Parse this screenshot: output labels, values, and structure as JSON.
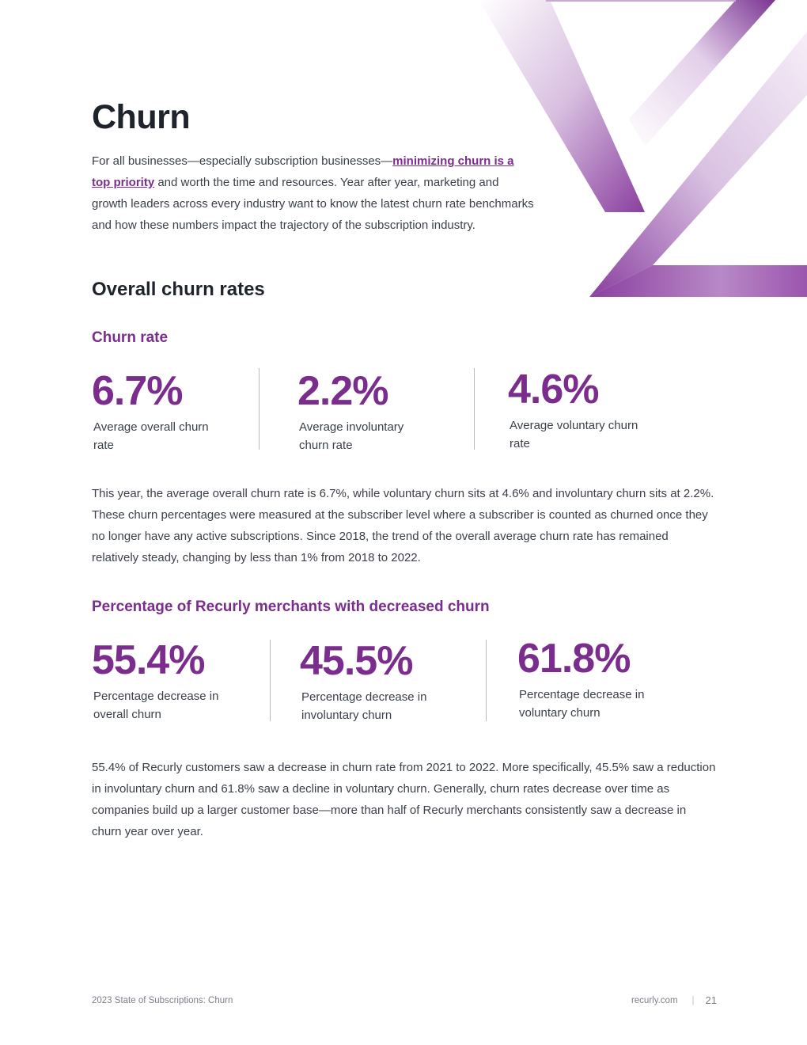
{
  "colors": {
    "accent": "#7b2d8e",
    "heading": "#1f232b",
    "body": "#3a3f48",
    "footer": "#7a7f88"
  },
  "page": {
    "title": "Churn",
    "intro": {
      "before_link": "For all businesses—especially subscription businesses—",
      "link_text": "minimizing churn is a top priority",
      "after_link": " and worth the time and resources. Year after year, marketing and growth leaders across every industry want to know the latest churn rate benchmarks and how these numbers impact the trajectory of the subscription industry."
    },
    "section_title": "Overall churn rates"
  },
  "churn_rate": {
    "heading": "Churn rate",
    "stats": [
      {
        "value": "6.7%",
        "label": "Average overall churn rate"
      },
      {
        "value": "2.2%",
        "label": "Average involuntary churn rate"
      },
      {
        "value": "4.6%",
        "label": "Average voluntary churn rate"
      }
    ],
    "paragraph": "This year, the average overall churn rate is 6.7%, while voluntary churn sits at 4.6% and involuntary churn sits at 2.2%. These churn percentages were measured at the subscriber level where a subscriber is counted as churned once they no longer have any active subscriptions. Since 2018, the trend of the overall average churn rate has remained relatively steady, changing by less than 1% from 2018 to 2022."
  },
  "decreased_churn": {
    "heading": "Percentage of Recurly merchants with decreased churn",
    "stats": [
      {
        "value": "55.4%",
        "label": "Percentage decrease in overall churn"
      },
      {
        "value": "45.5%",
        "label": "Percentage decrease in involuntary churn"
      },
      {
        "value": "61.8%",
        "label": "Percentage decrease in voluntary churn"
      }
    ],
    "paragraph": "55.4% of Recurly customers saw a decrease in churn rate from 2021 to 2022. More specifically, 45.5% saw a reduction in involuntary churn and 61.8% saw a decline in voluntary churn. Generally, churn rates decrease over time as companies build up a larger customer base—more than half of Recurly merchants consistently saw a decrease in churn year over year."
  },
  "footer": {
    "left": "2023 State of Subscriptions: Churn",
    "site": "recurly.com",
    "separator": "|",
    "page_number": "21"
  }
}
